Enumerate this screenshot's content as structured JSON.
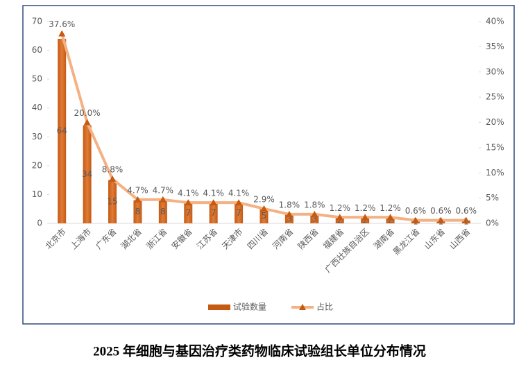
{
  "chart_data": {
    "type": "bar",
    "title": "2025 年细胞与基因治疗类药物临床试验组长单位分布情况",
    "categories": [
      "北京市",
      "上海市",
      "广东省",
      "湖北省",
      "浙江省",
      "安徽省",
      "江苏省",
      "天津市",
      "四川省",
      "河南省",
      "陕西省",
      "福建省",
      "广西壮族自治区",
      "湖南省",
      "黑龙江省",
      "山东省",
      "山西省"
    ],
    "series": [
      {
        "name": "试验数量",
        "type": "bar",
        "color": "#c55a11",
        "values": [
          64,
          34,
          15,
          8,
          8,
          7,
          7,
          7,
          5,
          3,
          3,
          2,
          2,
          2,
          1,
          1,
          1
        ]
      },
      {
        "name": "占比",
        "type": "line",
        "axis": "y2",
        "color": "#f4b183",
        "marker_color": "#c55a11",
        "values": [
          37.6,
          20,
          8.8,
          4.7,
          4.7,
          4.1,
          4.1,
          4.1,
          2.9,
          1.8,
          1.8,
          1.2,
          1.2,
          1.2,
          0.6,
          0.6,
          0.6
        ],
        "value_labels": [
          "37.6%",
          "20.0%",
          "8.8%",
          "4.7%",
          "4.7%",
          "4.1%",
          "4.1%",
          "4.1%",
          "2.9%",
          "1.8%",
          "1.8%",
          "1.2%",
          "1.2%",
          "1.2%",
          "0.6%",
          "0.6%",
          "0.6%"
        ]
      }
    ],
    "ylim": [
      0,
      70
    ],
    "yticks": [
      0,
      10,
      20,
      30,
      40,
      50,
      60,
      70
    ],
    "y2lim": [
      0,
      40
    ],
    "y2ticks": [
      {
        "value": 0,
        "label": "0%"
      },
      {
        "value": 5,
        "label": "5%"
      },
      {
        "value": 10,
        "label": "10%"
      },
      {
        "value": 15,
        "label": "15%"
      },
      {
        "value": 20,
        "label": "20%"
      },
      {
        "value": 25,
        "label": "25%"
      },
      {
        "value": 30,
        "label": "30%"
      },
      {
        "value": 35,
        "label": "35%"
      },
      {
        "value": 40,
        "label": "40%"
      }
    ],
    "legend": "bottom"
  }
}
